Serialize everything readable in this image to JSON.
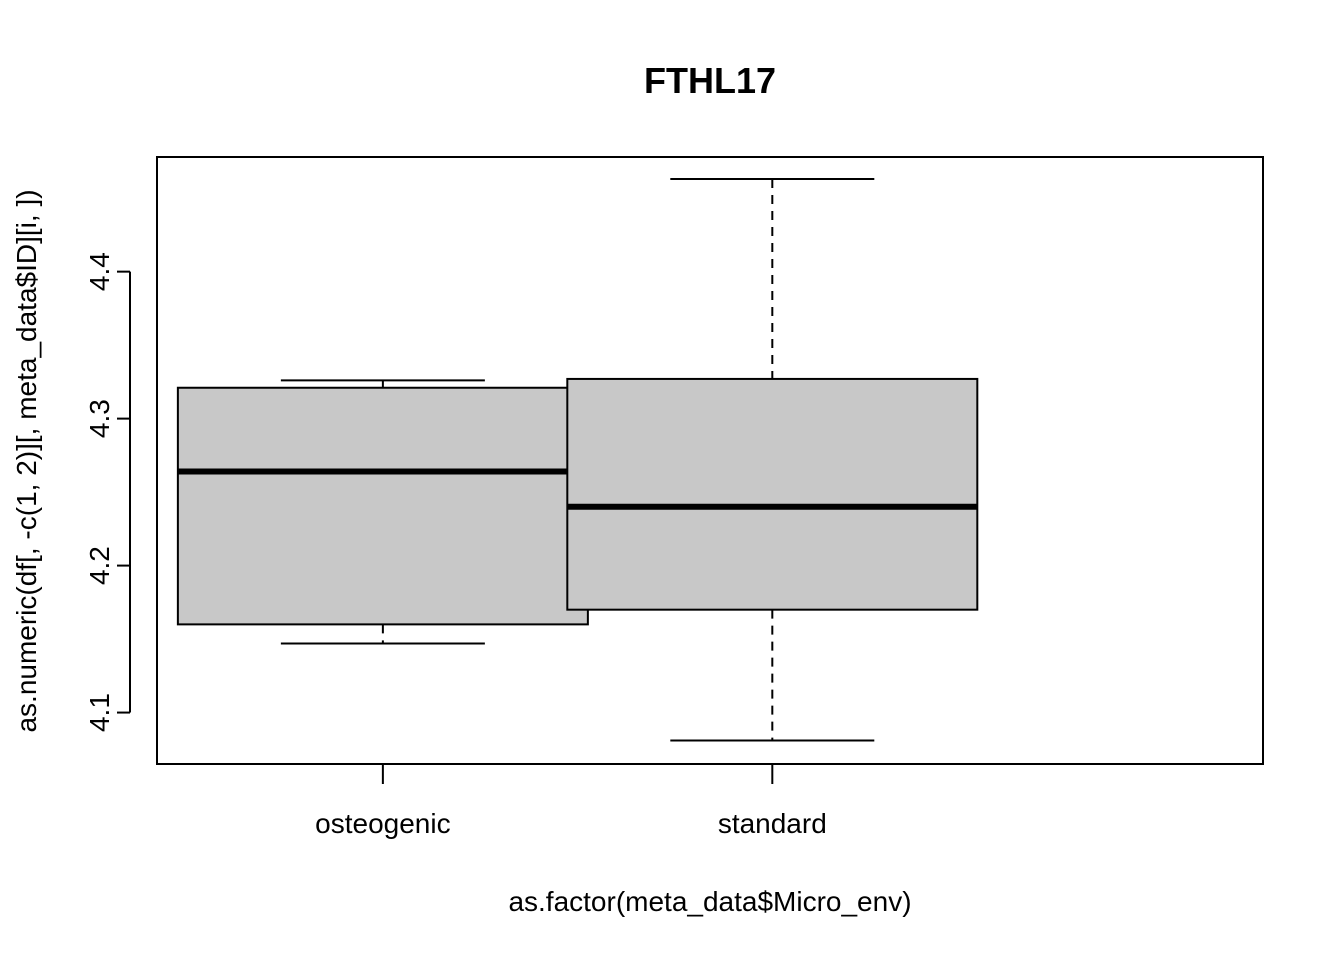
{
  "chart_data": {
    "type": "box",
    "title": "FTHL17",
    "xlabel": "as.factor(meta_data$Micro_env)",
    "ylabel": "as.numeric(df[, -c(1, 2)][, meta_data$ID][i, ])",
    "categories": [
      "osteogenic",
      "standard"
    ],
    "ylim": [
      4.065,
      4.478
    ],
    "yticks": [
      4.1,
      4.2,
      4.3,
      4.4
    ],
    "ytick_labels": [
      "4.1",
      "4.2",
      "4.3",
      "4.4"
    ],
    "grid": false,
    "box_fill": "#c8c8c8",
    "boxes": [
      {
        "category": "osteogenic",
        "whisker_low": 4.147,
        "q1": 4.16,
        "median": 4.264,
        "q3": 4.321,
        "whisker_high": 4.326
      },
      {
        "category": "standard",
        "whisker_low": 4.081,
        "q1": 4.17,
        "median": 4.24,
        "q3": 4.327,
        "whisker_high": 4.463
      }
    ]
  }
}
